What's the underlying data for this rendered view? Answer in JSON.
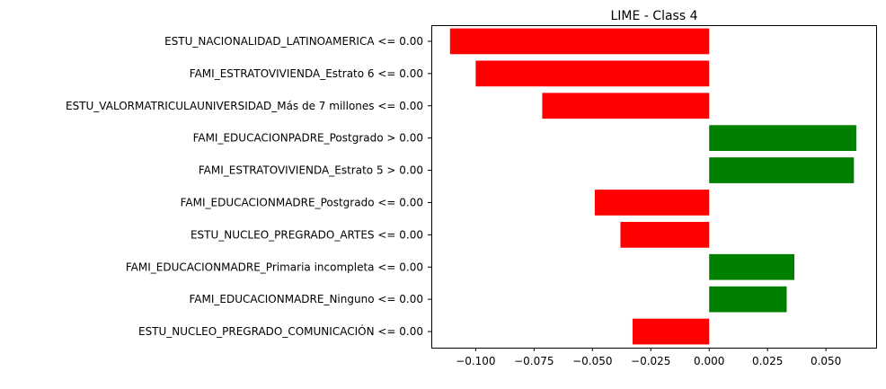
{
  "chart_data": {
    "type": "bar",
    "orientation": "horizontal",
    "title": "LIME - Class 4",
    "xlabel": "",
    "ylabel": "",
    "xlim": [
      -0.119,
      0.0715
    ],
    "grid": false,
    "legend": "none",
    "x_ticks": [
      -0.1,
      -0.075,
      -0.05,
      -0.025,
      0.0,
      0.025,
      0.05
    ],
    "x_tick_labels": [
      "−0.100",
      "−0.075",
      "−0.050",
      "−0.025",
      "0.000",
      "0.025",
      "0.050"
    ],
    "categories": [
      "ESTU_NACIONALIDAD_LATINOAMERICA <= 0.00",
      "FAMI_ESTRATOVIVIENDA_Estrato 6 <= 0.00",
      "ESTU_VALORMATRICULAUNIVERSIDAD_Más de 7 millones <= 0.00",
      "FAMI_EDUCACIONPADRE_Postgrado > 0.00",
      "FAMI_ESTRATOVIVIENDA_Estrato 5 > 0.00",
      "FAMI_EDUCACIONMADRE_Postgrado <= 0.00",
      "ESTU_NUCLEO_PREGRADO_ARTES <= 0.00",
      "FAMI_EDUCACIONMADRE_Primaria incompleta <= 0.00",
      "FAMI_EDUCACIONMADRE_Ninguno <= 0.00",
      "ESTU_NUCLEO_PREGRADO_COMUNICACIÓN <= 0.00"
    ],
    "values": [
      -0.111,
      -0.1,
      -0.0715,
      0.063,
      0.062,
      -0.049,
      -0.038,
      0.0365,
      0.0332,
      -0.0328
    ],
    "colors": {
      "positive": "#008000",
      "negative": "#ff0000"
    }
  }
}
